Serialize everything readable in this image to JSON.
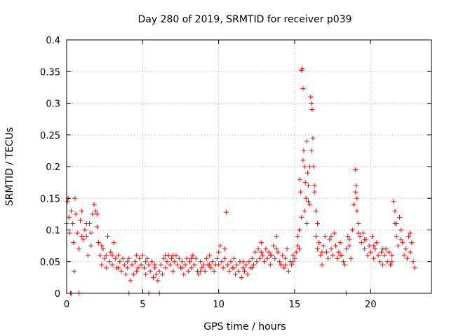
{
  "chart_data": {
    "type": "scatter",
    "title": "Day 280 of 2019, SRMTID for receiver p039",
    "xlabel": "GPS time / hours",
    "ylabel": "SRMTID / TECUs",
    "xlim": [
      0,
      24
    ],
    "ylim": [
      0,
      0.4
    ],
    "xticks": [
      0,
      5,
      10,
      15,
      20
    ],
    "xtick_labels": [
      "0",
      "5",
      "10",
      "15",
      "20"
    ],
    "yticks": [
      0,
      0.05,
      0.1,
      0.15,
      0.2,
      0.25,
      0.3,
      0.35,
      0.4
    ],
    "ytick_labels": [
      "0",
      "0.05",
      "0.1",
      "0.15",
      "0.2",
      "0.25",
      "0.3",
      "0.35",
      "0.4"
    ],
    "grid": true,
    "legend": "none",
    "series": [
      {
        "name": "SRMTID",
        "color": "#ff0000",
        "marker": "plus",
        "points": [
          [
            0.0,
            0.11
          ],
          [
            0.05,
            0.145
          ],
          [
            0.1,
            0.15
          ],
          [
            0.15,
            0.12
          ],
          [
            0.2,
            0.095
          ],
          [
            0.3,
            0.13
          ],
          [
            0.4,
            0.11
          ],
          [
            0.45,
            0.08
          ],
          [
            0.5,
            0.035
          ],
          [
            0.55,
            0.15
          ],
          [
            0.6,
            0.125
          ],
          [
            0.7,
            0.095
          ],
          [
            0.8,
            0.07
          ],
          [
            0.9,
            0.115
          ],
          [
            1.0,
            0.13
          ],
          [
            1.1,
            0.085
          ],
          [
            1.2,
            0.1
          ],
          [
            1.3,
            0.09
          ],
          [
            1.4,
            0.06
          ],
          [
            1.5,
            0.11
          ],
          [
            1.6,
            0.075
          ],
          [
            1.7,
            0.125
          ],
          [
            1.8,
            0.14
          ],
          [
            1.9,
            0.13
          ],
          [
            2.0,
            0.105
          ],
          [
            2.1,
            0.08
          ],
          [
            2.2,
            0.06
          ],
          [
            2.3,
            0.045
          ],
          [
            2.4,
            0.07
          ],
          [
            2.5,
            0.055
          ],
          [
            2.6,
            0.04
          ],
          [
            2.7,
            0.09
          ],
          [
            2.8,
            0.05
          ],
          [
            2.9,
            0.065
          ],
          [
            3.0,
            0.045
          ],
          [
            3.1,
            0.08
          ],
          [
            3.2,
            0.055
          ],
          [
            3.3,
            0.04
          ],
          [
            3.4,
            0.06
          ],
          [
            3.5,
            0.05
          ],
          [
            3.6,
            0.035
          ],
          [
            3.7,
            0.055
          ],
          [
            3.8,
            0.045
          ],
          [
            3.9,
            0.03
          ],
          [
            4.0,
            0.04
          ],
          [
            4.1,
            0.055
          ],
          [
            4.2,
            0.02
          ],
          [
            4.3,
            0.045
          ],
          [
            4.4,
            0.03
          ],
          [
            4.5,
            0.05
          ],
          [
            4.6,
            0.035
          ],
          [
            4.7,
            0.04
          ],
          [
            4.8,
            0.055
          ],
          [
            4.9,
            0.045
          ],
          [
            5.0,
            0.06
          ],
          [
            5.1,
            0.04
          ],
          [
            5.2,
            0.03
          ],
          [
            5.3,
            0.055
          ],
          [
            5.4,
            0.045
          ],
          [
            5.5,
            0.035
          ],
          [
            5.6,
            0.05
          ],
          [
            5.7,
            0.025
          ],
          [
            5.8,
            0.04
          ],
          [
            5.9,
            0.03
          ],
          [
            6.0,
            0.02
          ],
          [
            6.1,
            0.035
          ],
          [
            6.2,
            0.045
          ],
          [
            6.3,
            0.03
          ],
          [
            6.4,
            0.055
          ],
          [
            6.5,
            0.04
          ],
          [
            6.6,
            0.05
          ],
          [
            6.7,
            0.06
          ],
          [
            6.8,
            0.045
          ],
          [
            6.9,
            0.055
          ],
          [
            7.0,
            0.035
          ],
          [
            7.1,
            0.05
          ],
          [
            7.2,
            0.06
          ],
          [
            7.3,
            0.045
          ],
          [
            7.4,
            0.055
          ],
          [
            7.5,
            0.04
          ],
          [
            7.6,
            0.05
          ],
          [
            7.7,
            0.03
          ],
          [
            7.8,
            0.045
          ],
          [
            7.9,
            0.055
          ],
          [
            8.0,
            0.035
          ],
          [
            8.1,
            0.05
          ],
          [
            8.2,
            0.04
          ],
          [
            8.3,
            0.06
          ],
          [
            8.4,
            0.045
          ],
          [
            8.5,
            0.055
          ],
          [
            8.6,
            0.035
          ],
          [
            8.7,
            0.03
          ],
          [
            8.8,
            0.05
          ],
          [
            8.9,
            0.04
          ],
          [
            9.0,
            0.045
          ],
          [
            9.1,
            0.035
          ],
          [
            9.2,
            0.055
          ],
          [
            9.3,
            0.045
          ],
          [
            9.4,
            0.06
          ],
          [
            9.5,
            0.04
          ],
          [
            9.6,
            0.05
          ],
          [
            9.7,
            0.035
          ],
          [
            9.8,
            0.045
          ],
          [
            9.9,
            0.055
          ],
          [
            10.0,
            0.065
          ],
          [
            10.1,
            0.075
          ],
          [
            10.2,
            0.05
          ],
          [
            10.3,
            0.04
          ],
          [
            10.4,
            0.055
          ],
          [
            10.5,
            0.128
          ],
          [
            10.6,
            0.045
          ],
          [
            10.7,
            0.035
          ],
          [
            10.8,
            0.05
          ],
          [
            10.9,
            0.04
          ],
          [
            11.0,
            0.055
          ],
          [
            11.1,
            0.03
          ],
          [
            11.2,
            0.045
          ],
          [
            11.3,
            0.035
          ],
          [
            11.4,
            0.05
          ],
          [
            11.5,
            0.025
          ],
          [
            11.6,
            0.04
          ],
          [
            11.7,
            0.035
          ],
          [
            11.8,
            0.045
          ],
          [
            11.9,
            0.03
          ],
          [
            12.0,
            0.05
          ],
          [
            12.1,
            0.04
          ],
          [
            12.2,
            0.055
          ],
          [
            12.3,
            0.045
          ],
          [
            12.4,
            0.065
          ],
          [
            12.5,
            0.05
          ],
          [
            12.6,
            0.07
          ],
          [
            12.7,
            0.055
          ],
          [
            12.8,
            0.08
          ],
          [
            12.9,
            0.06
          ],
          [
            13.0,
            0.05
          ],
          [
            13.1,
            0.07
          ],
          [
            13.2,
            0.055
          ],
          [
            13.3,
            0.065
          ],
          [
            13.4,
            0.045
          ],
          [
            13.5,
            0.06
          ],
          [
            13.6,
            0.075
          ],
          [
            13.7,
            0.055
          ],
          [
            13.8,
            0.09
          ],
          [
            13.9,
            0.065
          ],
          [
            14.0,
            0.05
          ],
          [
            14.1,
            0.045
          ],
          [
            14.2,
            0.06
          ],
          [
            14.3,
            0.04
          ],
          [
            14.4,
            0.055
          ],
          [
            14.5,
            0.07
          ],
          [
            14.6,
            0.035
          ],
          [
            14.7,
            0.05
          ],
          [
            14.8,
            0.045
          ],
          [
            14.9,
            0.06
          ],
          [
            15.0,
            0.055
          ],
          [
            15.1,
            0.065
          ],
          [
            15.2,
            0.075
          ],
          [
            15.3,
            0.1
          ],
          [
            15.4,
            0.16
          ],
          [
            15.45,
            0.352
          ],
          [
            15.5,
            0.355
          ],
          [
            15.55,
            0.323
          ],
          [
            15.6,
            0.225
          ],
          [
            15.65,
            0.2
          ],
          [
            15.7,
            0.175
          ],
          [
            15.8,
            0.24
          ],
          [
            15.85,
            0.19
          ],
          [
            15.9,
            0.145
          ],
          [
            16.0,
            0.2
          ],
          [
            16.05,
            0.31
          ],
          [
            16.1,
            0.3
          ],
          [
            16.15,
            0.29
          ],
          [
            16.2,
            0.245
          ],
          [
            16.25,
            0.2
          ],
          [
            16.3,
            0.17
          ],
          [
            16.4,
            0.13
          ],
          [
            16.5,
            0.11
          ],
          [
            16.6,
            0.08
          ],
          [
            16.7,
            0.06
          ],
          [
            16.8,
            0.045
          ],
          [
            16.9,
            0.075
          ],
          [
            17.0,
            0.09
          ],
          [
            17.1,
            0.065
          ],
          [
            17.2,
            0.055
          ],
          [
            17.3,
            0.085
          ],
          [
            17.4,
            0.07
          ],
          [
            17.5,
            0.06
          ],
          [
            17.6,
            0.095
          ],
          [
            17.7,
            0.075
          ],
          [
            17.8,
            0.055
          ],
          [
            17.9,
            0.065
          ],
          [
            18.0,
            0.08
          ],
          [
            18.1,
            0.06
          ],
          [
            18.2,
            0.05
          ],
          [
            18.3,
            0.045
          ],
          [
            18.4,
            0.07
          ],
          [
            18.5,
            0.09
          ],
          [
            18.6,
            0.075
          ],
          [
            18.7,
            0.055
          ],
          [
            18.8,
            0.1
          ],
          [
            18.9,
            0.14
          ],
          [
            19.0,
            0.195
          ],
          [
            19.05,
            0.17
          ],
          [
            19.1,
            0.15
          ],
          [
            19.2,
            0.11
          ],
          [
            19.3,
            0.09
          ],
          [
            19.4,
            0.08
          ],
          [
            19.5,
            0.095
          ],
          [
            19.6,
            0.07
          ],
          [
            19.7,
            0.085
          ],
          [
            19.8,
            0.06
          ],
          [
            19.9,
            0.075
          ],
          [
            20.0,
            0.065
          ],
          [
            20.1,
            0.09
          ],
          [
            20.2,
            0.055
          ],
          [
            20.3,
            0.07
          ],
          [
            20.4,
            0.08
          ],
          [
            20.5,
            0.06
          ],
          [
            20.6,
            0.05
          ],
          [
            20.7,
            0.065
          ],
          [
            20.8,
            0.045
          ],
          [
            20.9,
            0.06
          ],
          [
            21.0,
            0.07
          ],
          [
            21.1,
            0.05
          ],
          [
            21.2,
            0.065
          ],
          [
            21.3,
            0.045
          ],
          [
            21.4,
            0.06
          ],
          [
            21.5,
            0.145
          ],
          [
            21.6,
            0.11
          ],
          [
            21.7,
            0.09
          ],
          [
            21.8,
            0.075
          ],
          [
            21.9,
            0.12
          ],
          [
            22.0,
            0.1
          ],
          [
            22.1,
            0.08
          ],
          [
            22.2,
            0.06
          ],
          [
            22.3,
            0.07
          ],
          [
            22.4,
            0.055
          ],
          [
            22.5,
            0.09
          ],
          [
            22.6,
            0.065
          ],
          [
            22.7,
            0.08
          ],
          [
            22.8,
            0.05
          ],
          [
            22.9,
            0.04
          ],
          [
            0.25,
            0
          ],
          [
            0.3,
            0
          ],
          [
            0.8,
            0
          ],
          [
            4.1,
            0
          ],
          [
            5.4,
            0
          ],
          [
            6.1,
            0
          ],
          [
            18.4,
            0
          ],
          [
            15.35,
            0.18
          ],
          [
            15.55,
            0.21
          ],
          [
            15.75,
            0.15
          ],
          [
            15.9,
            0.17
          ],
          [
            16.0,
            0.14
          ],
          [
            16.1,
            0.225
          ],
          [
            16.3,
            0.16
          ],
          [
            15.45,
            0.12
          ],
          [
            15.65,
            0.13
          ],
          [
            15.8,
            0.11
          ],
          [
            16.4,
            0.09
          ],
          [
            16.5,
            0.07
          ],
          [
            15.2,
            0.09
          ],
          [
            15.3,
            0.07
          ],
          [
            19.0,
            0.16
          ],
          [
            19.1,
            0.13
          ],
          [
            19.2,
            0.095
          ],
          [
            21.6,
            0.13
          ],
          [
            21.7,
            0.11
          ],
          [
            1.0,
            0.09
          ],
          [
            1.3,
            0.11
          ],
          [
            1.6,
            0.095
          ],
          [
            2.0,
            0.125
          ],
          [
            2.3,
            0.075
          ],
          [
            2.6,
            0.06
          ],
          [
            3.0,
            0.06
          ],
          [
            3.4,
            0.04
          ],
          [
            4.0,
            0.05
          ],
          [
            4.6,
            0.06
          ],
          [
            5.2,
            0.05
          ],
          [
            5.8,
            0.045
          ],
          [
            6.5,
            0.06
          ],
          [
            7.0,
            0.06
          ],
          [
            7.6,
            0.04
          ],
          [
            8.2,
            0.055
          ],
          [
            8.8,
            0.035
          ],
          [
            9.4,
            0.045
          ],
          [
            10.0,
            0.045
          ],
          [
            10.4,
            0.07
          ],
          [
            11.0,
            0.04
          ],
          [
            11.6,
            0.05
          ],
          [
            12.2,
            0.04
          ],
          [
            12.8,
            0.065
          ],
          [
            13.4,
            0.06
          ],
          [
            13.8,
            0.07
          ],
          [
            14.4,
            0.045
          ],
          [
            14.9,
            0.05
          ],
          [
            16.8,
            0.065
          ],
          [
            17.4,
            0.09
          ],
          [
            18.0,
            0.06
          ],
          [
            18.6,
            0.085
          ],
          [
            19.6,
            0.085
          ],
          [
            20.2,
            0.075
          ],
          [
            20.8,
            0.07
          ],
          [
            21.4,
            0.05
          ],
          [
            22.0,
            0.085
          ],
          [
            22.6,
            0.095
          ]
        ]
      }
    ]
  }
}
